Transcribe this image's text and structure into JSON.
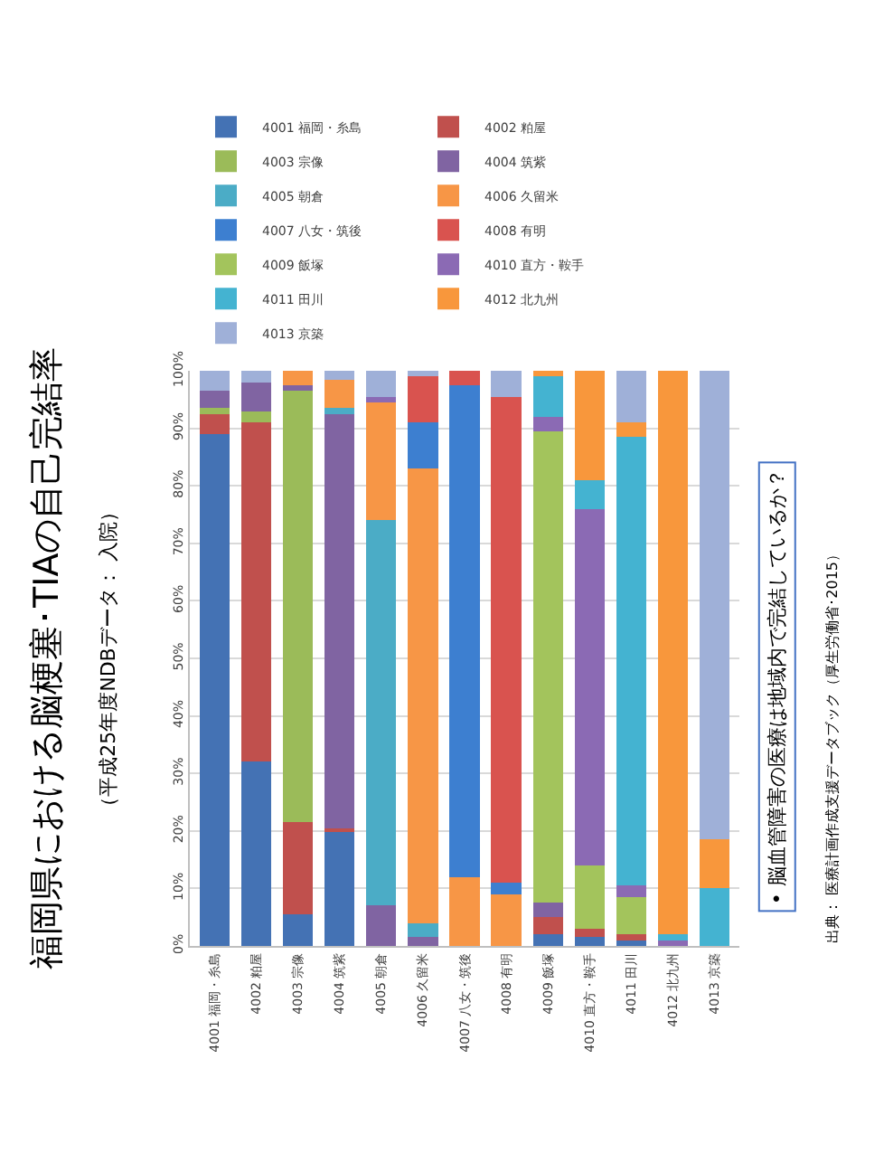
{
  "chart_data": {
    "type": "bar",
    "stacked": true,
    "title": "福岡県における脳梗塞･TIAの自己完結率",
    "subtitle": "（平成25年度NDBデータ： 入院）",
    "categories": [
      "4001 福岡・糸島",
      "4002 粕屋",
      "4003 宗像",
      "4004 筑紫",
      "4005 朝倉",
      "4006 久留米",
      "4007 八女・筑後",
      "4008 有明",
      "4009 飯塚",
      "4010 直方・鞍手",
      "4011 田川",
      "4012 北九州",
      "4013 京築"
    ],
    "series": [
      {
        "name": "4001 福岡・糸島",
        "color": "#4472b4",
        "values": [
          89,
          32,
          5.5,
          20,
          0,
          0,
          0,
          0,
          2,
          1.5,
          1,
          0,
          0
        ]
      },
      {
        "name": "4002 粕屋",
        "color": "#c0504d",
        "values": [
          3.5,
          59,
          16,
          0.5,
          0,
          0,
          0,
          0,
          3,
          1.5,
          1,
          0,
          0
        ]
      },
      {
        "name": "4003 宗像",
        "color": "#9bbb59",
        "values": [
          1,
          2,
          75,
          0,
          0,
          0,
          0,
          0,
          0,
          0,
          0,
          0,
          0
        ]
      },
      {
        "name": "4004 筑紫",
        "color": "#8064a2",
        "values": [
          3,
          5,
          1,
          72,
          7,
          1.5,
          0,
          0,
          2.5,
          0,
          0,
          0,
          0
        ]
      },
      {
        "name": "4005 朝倉",
        "color": "#4bacc6",
        "values": [
          0,
          0,
          0,
          1,
          67,
          2.5,
          0,
          0,
          0,
          0,
          0,
          0,
          0
        ]
      },
      {
        "name": "4006 久留米",
        "color": "#f79646",
        "values": [
          0,
          0,
          2.5,
          5,
          20.5,
          79,
          12,
          9,
          0,
          0,
          0,
          0,
          0
        ]
      },
      {
        "name": "4007 八女・筑後",
        "color": "#3d7fd0",
        "values": [
          0,
          0,
          0,
          0,
          0,
          8,
          85.5,
          2,
          0,
          0,
          0,
          0,
          0
        ]
      },
      {
        "name": "4008 有明",
        "color": "#d9534f",
        "values": [
          0,
          0,
          0,
          0,
          0,
          8,
          2.5,
          84.5,
          0,
          0,
          0,
          0,
          0
        ]
      },
      {
        "name": "4009 飯塚",
        "color": "#a3c45c",
        "values": [
          0,
          0,
          0,
          0,
          0,
          0,
          0,
          0,
          82,
          11,
          6.5,
          0,
          0
        ]
      },
      {
        "name": "4010 直方・鞍手",
        "color": "#8b6ab4",
        "values": [
          0,
          0,
          0,
          0,
          1,
          0,
          0,
          0,
          2.5,
          62,
          2,
          1,
          0
        ]
      },
      {
        "name": "4011 田川",
        "color": "#44b3d1",
        "values": [
          0,
          0,
          0,
          0,
          0,
          0,
          0,
          0,
          7,
          5,
          78,
          1,
          10
        ]
      },
      {
        "name": "4012 北九州",
        "color": "#f8973c",
        "values": [
          0,
          0,
          0,
          0,
          0,
          0,
          0,
          0,
          1,
          19,
          2.5,
          98,
          8.5
        ]
      },
      {
        "name": "4013 京築",
        "color": "#9fb0d8",
        "values": [
          3.5,
          2,
          0,
          1.5,
          4.5,
          1,
          0,
          4.5,
          0,
          0,
          9,
          0,
          81.5
        ]
      }
    ],
    "ylim": [
      0,
      100
    ],
    "yticks": [
      {
        "value": 0,
        "label": "0%"
      },
      {
        "value": 10,
        "label": "10%"
      },
      {
        "value": 20,
        "label": "20%"
      },
      {
        "value": 30,
        "label": "30%"
      },
      {
        "value": 40,
        "label": "40%"
      },
      {
        "value": 50,
        "label": "50%"
      },
      {
        "value": 60,
        "label": "60%"
      },
      {
        "value": 70,
        "label": "70%"
      },
      {
        "value": 80,
        "label": "80%"
      },
      {
        "value": 90,
        "label": "90%"
      },
      {
        "value": 100,
        "label": "100%"
      }
    ],
    "grid": "y",
    "legend": "top",
    "annotations": [
      "• 脳血管障害の医療は地域内で完結しているか？",
      "出典： 医療計画作成支援データブック（厚生労働省･2015）"
    ]
  }
}
